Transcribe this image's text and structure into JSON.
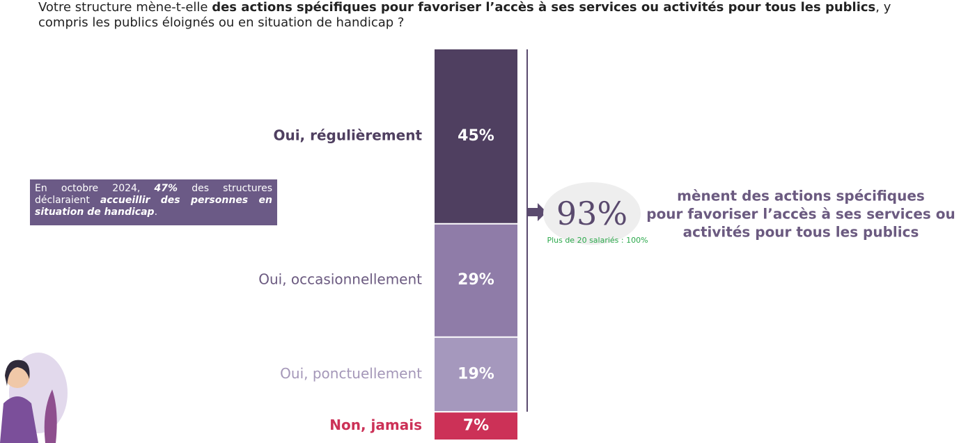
{
  "chart_data": {
    "type": "stacked_bar",
    "title": [
      "Votre structure mène-t-elle ",
      "des actions spécifiques pour favoriser l’accès à ses services ou activités pour tous les publics",
      ", y compris les publics éloignés ou en situation de handicap ?"
    ],
    "categories": [
      "Oui, régulièrement",
      "Oui, occasionnellement",
      "Oui, ponctuellement",
      "Non, jamais"
    ],
    "values": [
      45,
      29,
      19,
      7
    ],
    "value_labels": [
      "45%",
      "29%",
      "19%",
      "7%"
    ],
    "colors": [
      "#4f3f60",
      "#8f7ca8",
      "#a598bd",
      "#cc3157"
    ],
    "label_colors": [
      "#4f3f60",
      "#6b5a80",
      "#a497b8",
      "#cc3157"
    ],
    "label_bold": [
      true,
      false,
      false,
      true
    ],
    "note": [
      "En octobre 2024, ",
      "47%",
      " des structures déclaraient ",
      "accueillir des personnes en situation de handicap",
      "."
    ],
    "callout_value": 93,
    "callout_label": "93%",
    "callout_sub": "Plus de 20 salariés : 100%",
    "callout_text": [
      "mènent des actions spécifiques",
      "pour favoriser l’accès à ses services ou",
      "activités pour tous les publics"
    ]
  }
}
